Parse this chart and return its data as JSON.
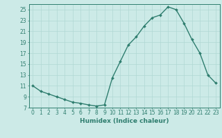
{
  "x": [
    0,
    1,
    2,
    3,
    4,
    5,
    6,
    7,
    8,
    9,
    10,
    11,
    12,
    13,
    14,
    15,
    16,
    17,
    18,
    19,
    20,
    21,
    22,
    23
  ],
  "y": [
    11,
    10,
    9.5,
    9,
    8.5,
    8,
    7.8,
    7.5,
    7.3,
    7.5,
    12.5,
    15.5,
    18.5,
    20,
    22,
    23.5,
    24,
    25.5,
    25,
    22.5,
    19.5,
    17,
    13,
    11.5
  ],
  "line_color": "#2e7d6e",
  "marker": "D",
  "marker_size": 2.0,
  "background_color": "#cceae7",
  "grid_color": "#b0d8d4",
  "xlabel": "Humidex (Indice chaleur)",
  "ylabel": "",
  "ylim": [
    7,
    26
  ],
  "xlim": [
    -0.5,
    23.5
  ],
  "yticks": [
    7,
    9,
    11,
    13,
    15,
    17,
    19,
    21,
    23,
    25
  ],
  "xticks": [
    0,
    1,
    2,
    3,
    4,
    5,
    6,
    7,
    8,
    9,
    10,
    11,
    12,
    13,
    14,
    15,
    16,
    17,
    18,
    19,
    20,
    21,
    22,
    23
  ],
  "xlabel_fontsize": 6.5,
  "tick_fontsize": 5.5,
  "line_width": 1.0
}
